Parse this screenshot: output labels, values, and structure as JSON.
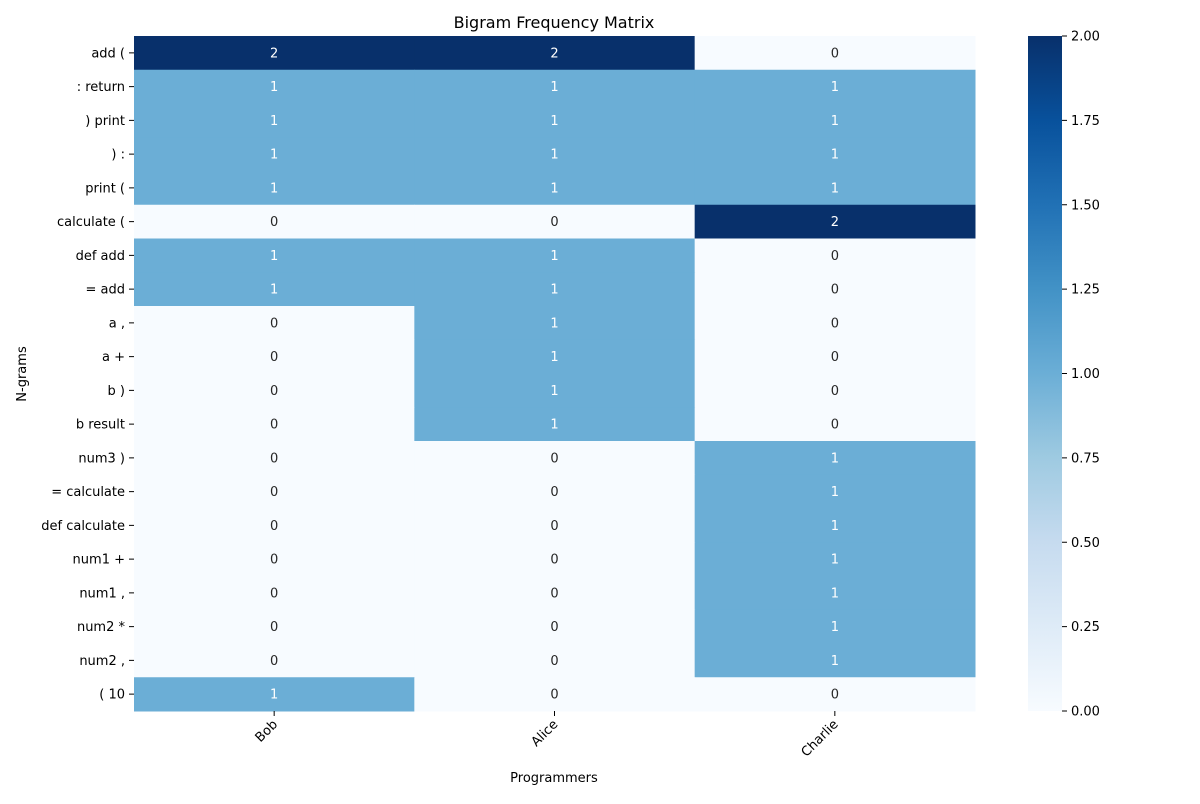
{
  "chart_data": {
    "type": "heatmap",
    "title": "Bigram Frequency Matrix",
    "xlabel": "Programmers",
    "ylabel": "N-grams",
    "columns": [
      "Bob",
      "Alice",
      "Charlie"
    ],
    "rows": [
      "add (",
      ": return",
      ") print",
      ") :",
      "print (",
      "calculate (",
      "def add",
      "= add",
      "a ,",
      "a +",
      "b )",
      "b result",
      "num3 )",
      "= calculate",
      "def calculate",
      "num1 +",
      "num1 ,",
      "num2 *",
      "num2 ,",
      "( 10"
    ],
    "values": [
      [
        2,
        2,
        0
      ],
      [
        1,
        1,
        1
      ],
      [
        1,
        1,
        1
      ],
      [
        1,
        1,
        1
      ],
      [
        1,
        1,
        1
      ],
      [
        0,
        0,
        2
      ],
      [
        1,
        1,
        0
      ],
      [
        1,
        1,
        0
      ],
      [
        0,
        1,
        0
      ],
      [
        0,
        1,
        0
      ],
      [
        0,
        1,
        0
      ],
      [
        0,
        1,
        0
      ],
      [
        0,
        0,
        1
      ],
      [
        0,
        0,
        1
      ],
      [
        0,
        0,
        1
      ],
      [
        0,
        0,
        1
      ],
      [
        0,
        0,
        1
      ],
      [
        0,
        0,
        1
      ],
      [
        0,
        0,
        1
      ],
      [
        1,
        0,
        0
      ]
    ],
    "annotations": true,
    "colormap": "Blues",
    "color_range": [
      0,
      2
    ],
    "colorbar": {
      "ticks": [
        "0.00",
        "0.25",
        "0.50",
        "0.75",
        "1.00",
        "1.25",
        "1.50",
        "1.75",
        "2.00"
      ],
      "position": "right"
    },
    "colors": {
      "low": "#f7fbff",
      "mid": "#6baed6",
      "high": "#08306b",
      "annot_dark": "#262626",
      "annot_light": "#ffffff"
    },
    "x_tick_rotation": "45"
  }
}
